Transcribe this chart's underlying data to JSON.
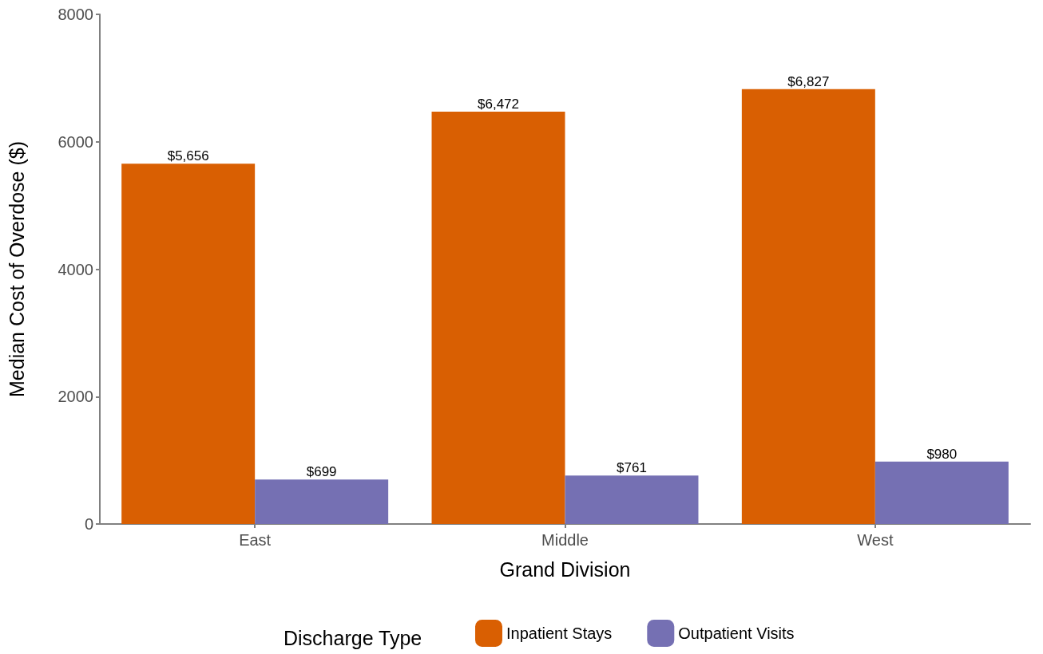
{
  "chart_data": {
    "type": "bar",
    "xlabel": "Grand Division",
    "ylabel": "Median Cost of Overdose ($)",
    "legend_title": "Discharge Type",
    "categories": [
      "East",
      "Middle",
      "West"
    ],
    "series": [
      {
        "name": "Inpatient Stays",
        "color": "#d95f02",
        "values": [
          5656,
          6472,
          6827
        ],
        "value_labels": [
          "$5,656",
          "$6,472",
          "$6,827"
        ]
      },
      {
        "name": "Outpatient Visits",
        "color": "#7570b3",
        "values": [
          699,
          761,
          980
        ],
        "value_labels": [
          "$699",
          "$761",
          "$980"
        ]
      }
    ],
    "ylim": [
      0,
      8000
    ],
    "yticks": [
      0,
      2000,
      4000,
      6000,
      8000
    ],
    "grid": false,
    "legend": "bottom"
  }
}
